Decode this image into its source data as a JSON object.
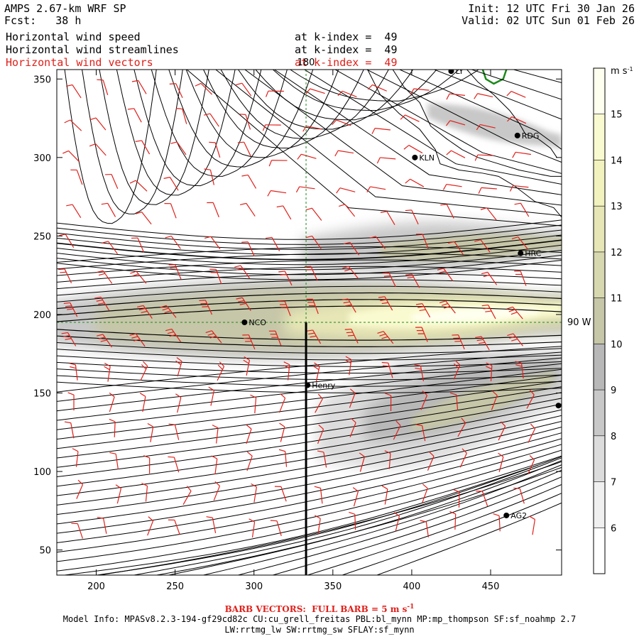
{
  "header": {
    "model": "AMPS 2.67-km WRF SP",
    "fcst": "Fcst:   38 h",
    "init": "Init: 12 UTC Fri 30 Jan 26",
    "valid": "Valid: 02 UTC Sun 01 Feb 26",
    "fields": [
      {
        "name": "Horizontal wind speed",
        "level": "at k-index =  49",
        "color": "#000000"
      },
      {
        "name": "Horizontal wind streamlines",
        "level": "at k-index =  49",
        "color": "#000000"
      },
      {
        "name": "Horizontal wind vectors",
        "level": "at k-index =  49",
        "color": "#e0201a"
      }
    ]
  },
  "chart_data": {
    "type": "heatmap",
    "title": "Horizontal wind speed / streamlines / vectors at k-index = 49",
    "xlabel": "",
    "ylabel": "",
    "xlim": [
      175,
      495
    ],
    "ylim": [
      34,
      356
    ],
    "xticks": [
      200,
      250,
      300,
      350,
      400,
      450
    ],
    "yticks": [
      50,
      100,
      150,
      200,
      250,
      300,
      350
    ],
    "reference_lines": {
      "vertical": {
        "x": 333,
        "label": "180"
      },
      "horizontal": {
        "y": 195,
        "label": "90 W"
      }
    },
    "cross_section_line": {
      "x": 333,
      "y_from": 34,
      "y_to": 195
    },
    "colorbar": {
      "units": "m s-1",
      "ticks": [
        6,
        7,
        8,
        9,
        10,
        11,
        12,
        13,
        14,
        15
      ],
      "bins": [
        {
          "lo": 5,
          "hi": 6,
          "color": "#ffffff"
        },
        {
          "lo": 6,
          "hi": 7,
          "color": "#f0f0f0"
        },
        {
          "lo": 7,
          "hi": 8,
          "color": "#dcdcdc"
        },
        {
          "lo": 8,
          "hi": 9,
          "color": "#c8c8c8"
        },
        {
          "lo": 9,
          "hi": 10,
          "color": "#b8b8b8"
        },
        {
          "lo": 10,
          "hi": 11,
          "color": "#c6c6a8"
        },
        {
          "lo": 11,
          "hi": 12,
          "color": "#d8d8b0"
        },
        {
          "lo": 12,
          "hi": 13,
          "color": "#e6e6b6"
        },
        {
          "lo": 13,
          "hi": 14,
          "color": "#f2f2be"
        },
        {
          "lo": 14,
          "hi": 15,
          "color": "#fafad0"
        },
        {
          "lo": 15,
          "hi": 16,
          "color": "#fffff0"
        }
      ]
    },
    "stations": [
      {
        "name": "LY",
        "x": 425,
        "y": 355
      },
      {
        "name": "RDG",
        "x": 467,
        "y": 314
      },
      {
        "name": "KLN",
        "x": 402,
        "y": 300
      },
      {
        "name": "HRC",
        "x": 469,
        "y": 239
      },
      {
        "name": "NCO",
        "x": 294,
        "y": 195
      },
      {
        "name": "Henry",
        "x": 334,
        "y": 155
      },
      {
        "name": "",
        "x": 493,
        "y": 142
      },
      {
        "name": "AG2",
        "x": 460,
        "y": 72
      }
    ],
    "wind_bands": [
      {
        "y_center": 195,
        "speed_max": 15
      },
      {
        "y_center": 240,
        "speed_max": 11
      },
      {
        "y_center": 125,
        "speed_max": 10
      }
    ]
  },
  "footer": {
    "barb_note": "BARB VECTORS:  FULL BARB = 5 m s",
    "barb_sup": "-1",
    "model_info": "Model Info: MPASv8.2.3-194-gf29cd82c CU:cu_grell_freitas PBL:bl_mynn MP:mp_thompson SF:sf_noahmp 2.7",
    "model_info2": "LW:rrtmg_lw SW:rrtmg_sw SFLAY:sf_mynn"
  },
  "colors": {
    "streamline": "#000000",
    "barb": "#e0201a",
    "coast": "#000000",
    "refline": "#1a8a1a"
  }
}
